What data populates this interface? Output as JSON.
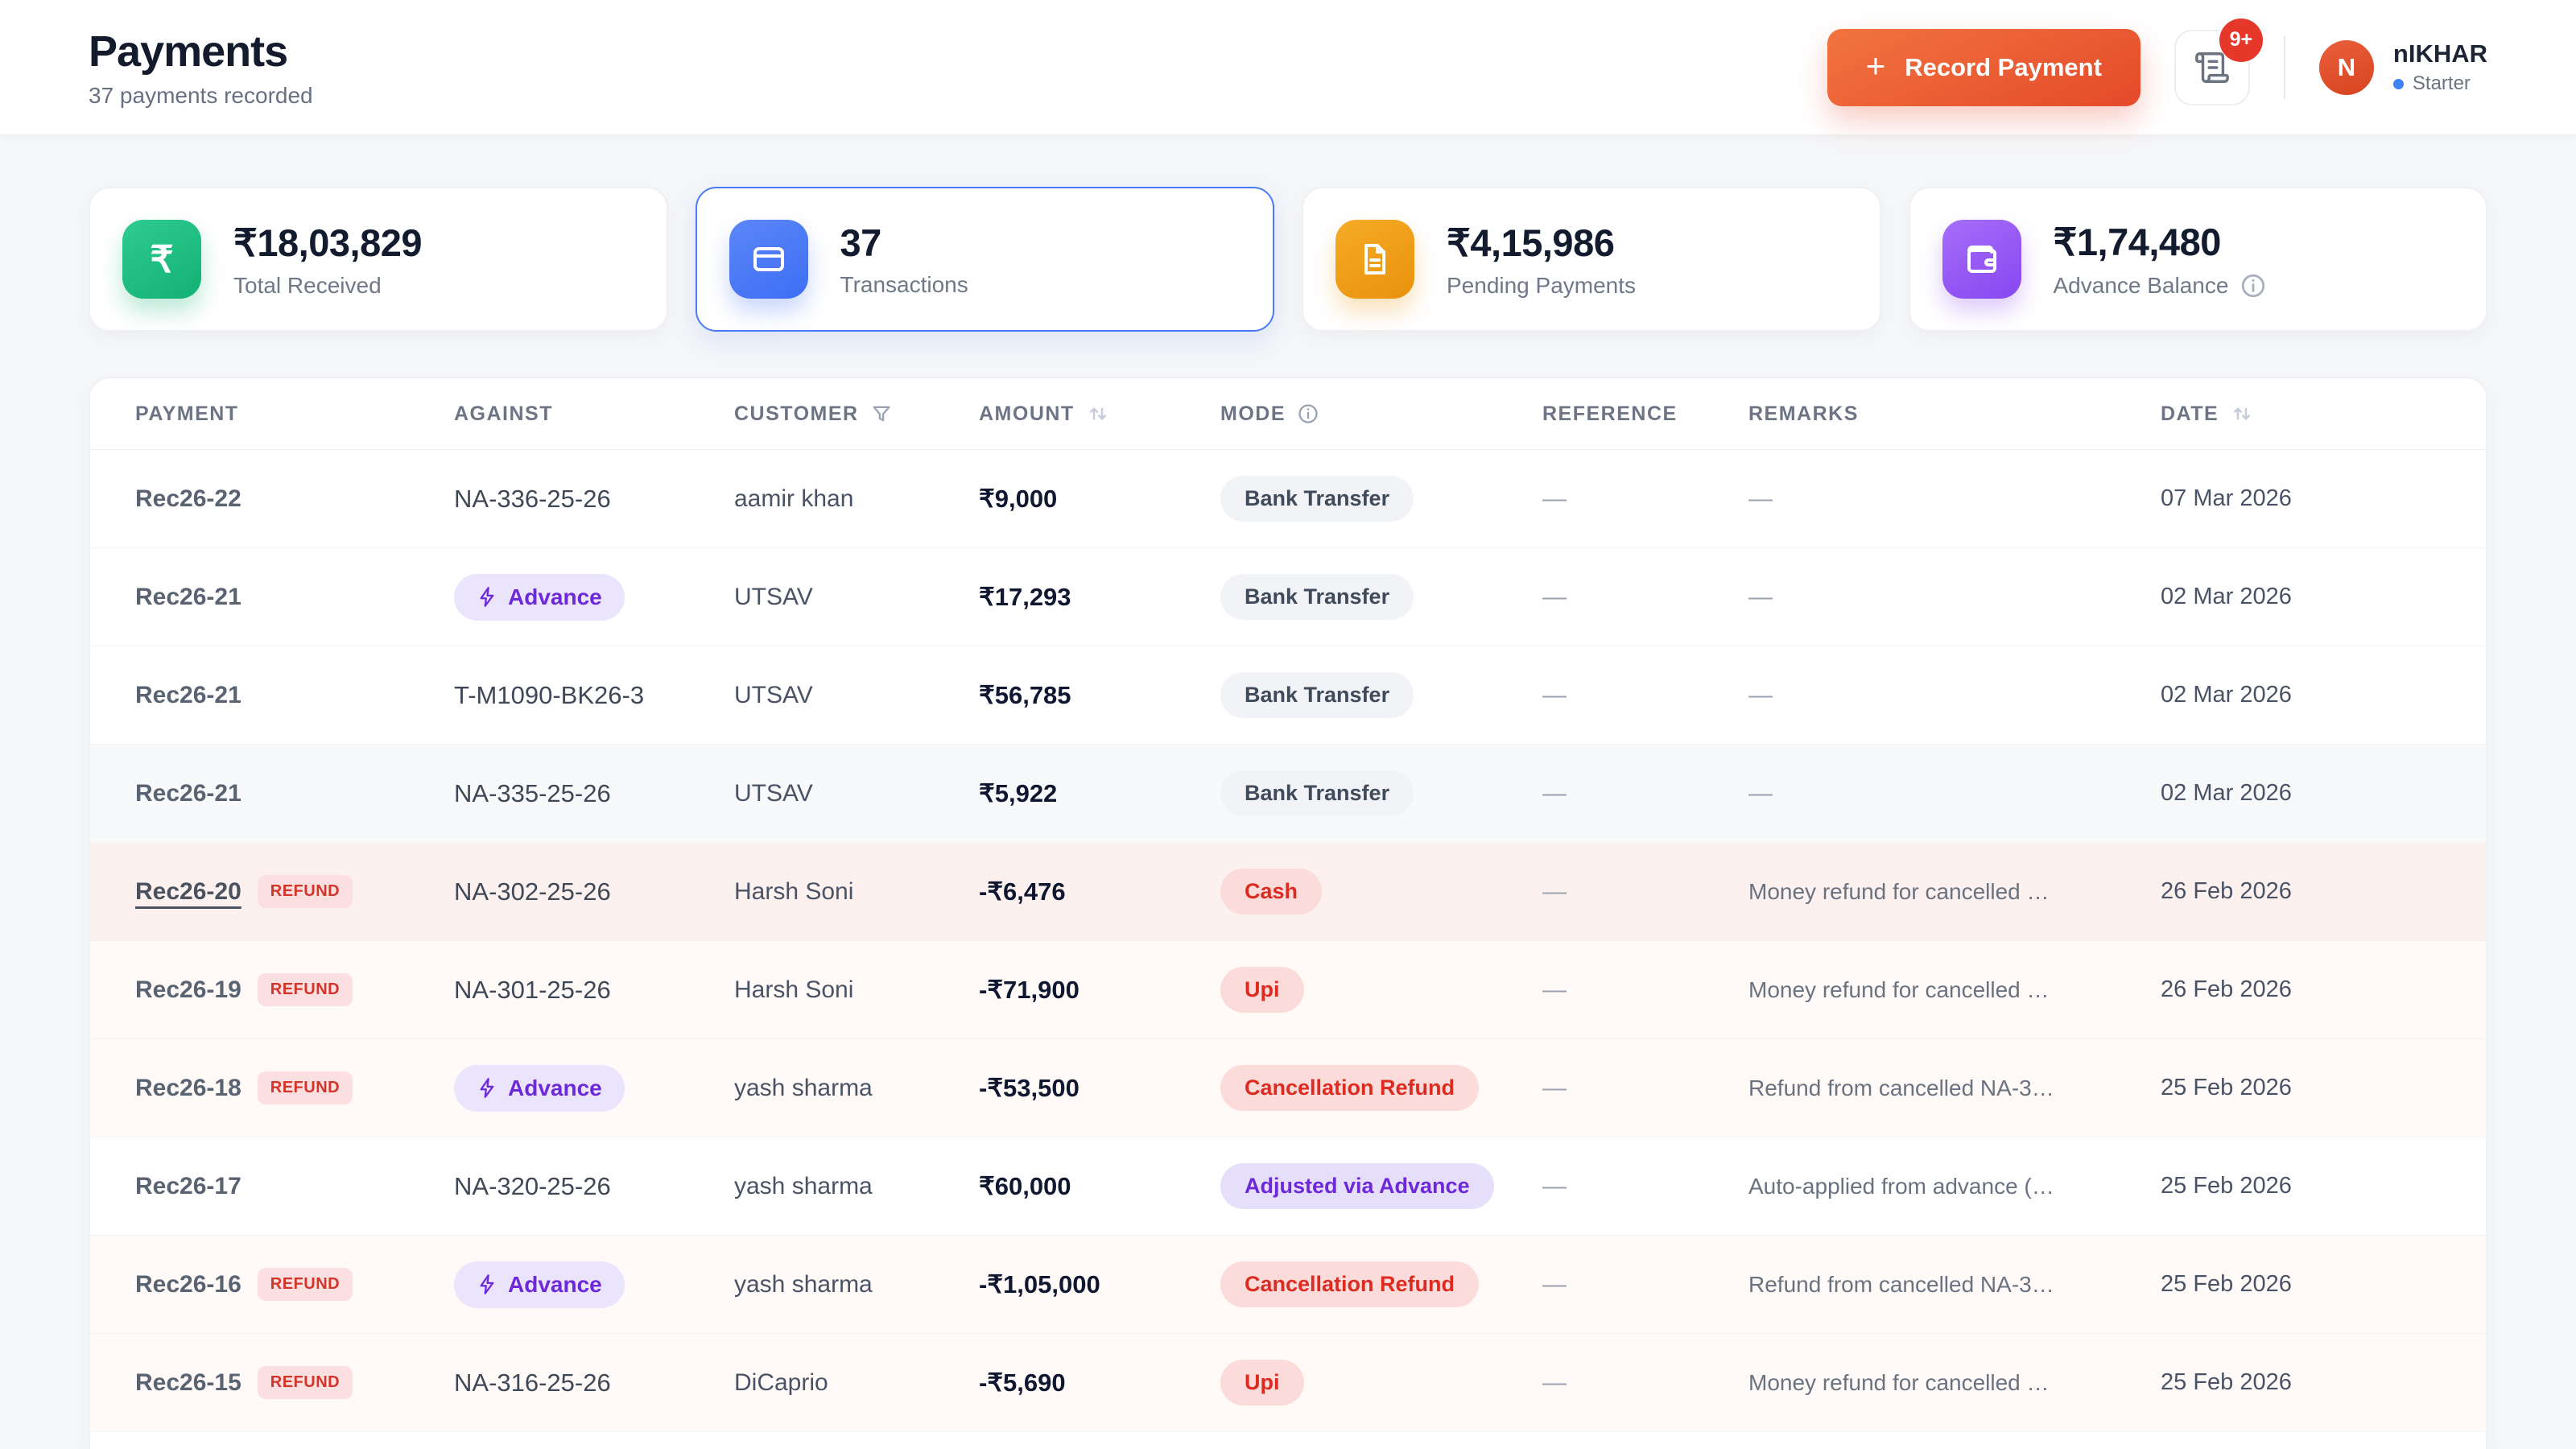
{
  "header": {
    "title": "Payments",
    "subtitle": "37 payments recorded",
    "record_button": {
      "label": "Record Payment"
    },
    "notification": {
      "badge": "9+"
    },
    "user": {
      "initial": "N",
      "name": "nIKHAR",
      "plan": "Starter"
    }
  },
  "colors": {
    "accent_orange": "#e8502e",
    "selected_blue": "#4a7bf7",
    "green": "#14b377",
    "amber": "#eb990f",
    "purple": "#8b52f3",
    "refund_red": "#dc2f26",
    "page_bg": "#f5f6f8"
  },
  "stats": [
    {
      "value": "₹18,03,829",
      "label": "Total Received",
      "icon": "rupee",
      "tile": "green",
      "selected": false,
      "info": false
    },
    {
      "value": "37",
      "label": "Transactions",
      "icon": "card",
      "tile": "blue",
      "selected": true,
      "info": false
    },
    {
      "value": "₹4,15,986",
      "label": "Pending Payments",
      "icon": "document",
      "tile": "amber",
      "selected": false,
      "info": false
    },
    {
      "value": "₹1,74,480",
      "label": "Advance Balance",
      "icon": "wallet",
      "tile": "purple",
      "selected": false,
      "info": true
    }
  ],
  "table": {
    "refund_badge_label": "REFUND",
    "advance_label": "Advance",
    "columns": [
      {
        "label": "PAYMENT",
        "icon": null
      },
      {
        "label": "AGAINST",
        "icon": null
      },
      {
        "label": "CUSTOMER",
        "icon": "filter"
      },
      {
        "label": "AMOUNT",
        "icon": "sort"
      },
      {
        "label": "MODE",
        "icon": "info"
      },
      {
        "label": "REFERENCE",
        "icon": null
      },
      {
        "label": "REMARKS",
        "icon": null
      },
      {
        "label": "DATE",
        "icon": "sort"
      }
    ],
    "rows": [
      {
        "payment": "Rec26-22",
        "refund": false,
        "underline": false,
        "against": {
          "type": "text",
          "label": "NA-336-25-26"
        },
        "customer": "aamir khan",
        "amount": "₹9,000",
        "mode": {
          "label": "Bank Transfer",
          "variant": "neutral"
        },
        "reference": "—",
        "remarks": "—",
        "date": "07 Mar 2026",
        "highlight": "none"
      },
      {
        "payment": "Rec26-21",
        "refund": false,
        "underline": false,
        "against": {
          "type": "advance"
        },
        "customer": "UTSAV",
        "amount": "₹17,293",
        "mode": {
          "label": "Bank Transfer",
          "variant": "neutral"
        },
        "reference": "—",
        "remarks": "—",
        "date": "02 Mar 2026",
        "highlight": "none"
      },
      {
        "payment": "Rec26-21",
        "refund": false,
        "underline": false,
        "against": {
          "type": "text",
          "label": "T-M1090-BK26-3"
        },
        "customer": "UTSAV",
        "amount": "₹56,785",
        "mode": {
          "label": "Bank Transfer",
          "variant": "neutral"
        },
        "reference": "—",
        "remarks": "—",
        "date": "02 Mar 2026",
        "highlight": "none"
      },
      {
        "payment": "Rec26-21",
        "refund": false,
        "underline": false,
        "against": {
          "type": "text",
          "label": "NA-335-25-26"
        },
        "customer": "UTSAV",
        "amount": "₹5,922",
        "mode": {
          "label": "Bank Transfer",
          "variant": "neutral"
        },
        "reference": "—",
        "remarks": "—",
        "date": "02 Mar 2026",
        "highlight": "stripe"
      },
      {
        "payment": "Rec26-20",
        "refund": true,
        "underline": true,
        "against": {
          "type": "text",
          "label": "NA-302-25-26"
        },
        "customer": "Harsh Soni",
        "amount": "-₹6,476",
        "mode": {
          "label": "Cash",
          "variant": "red"
        },
        "reference": "—",
        "remarks": "Money refund for cancelled …",
        "date": "26 Feb 2026",
        "highlight": "active"
      },
      {
        "payment": "Rec26-19",
        "refund": true,
        "underline": false,
        "against": {
          "type": "text",
          "label": "NA-301-25-26"
        },
        "customer": "Harsh Soni",
        "amount": "-₹71,900",
        "mode": {
          "label": "Upi",
          "variant": "red"
        },
        "reference": "—",
        "remarks": "Money refund for cancelled …",
        "date": "26 Feb 2026",
        "highlight": "tint"
      },
      {
        "payment": "Rec26-18",
        "refund": true,
        "underline": false,
        "against": {
          "type": "advance"
        },
        "customer": "yash sharma",
        "amount": "-₹53,500",
        "mode": {
          "label": "Cancellation Refund",
          "variant": "red"
        },
        "reference": "—",
        "remarks": "Refund from cancelled NA-3…",
        "date": "25 Feb 2026",
        "highlight": "tint"
      },
      {
        "payment": "Rec26-17",
        "refund": false,
        "underline": false,
        "against": {
          "type": "text",
          "label": "NA-320-25-26"
        },
        "customer": "yash sharma",
        "amount": "₹60,000",
        "mode": {
          "label": "Adjusted via Advance",
          "variant": "purple"
        },
        "reference": "—",
        "remarks": "Auto-applied from advance (…",
        "date": "25 Feb 2026",
        "highlight": "none"
      },
      {
        "payment": "Rec26-16",
        "refund": true,
        "underline": false,
        "against": {
          "type": "advance"
        },
        "customer": "yash sharma",
        "amount": "-₹1,05,000",
        "mode": {
          "label": "Cancellation Refund",
          "variant": "red"
        },
        "reference": "—",
        "remarks": "Refund from cancelled NA-3…",
        "date": "25 Feb 2026",
        "highlight": "tint"
      },
      {
        "payment": "Rec26-15",
        "refund": true,
        "underline": false,
        "against": {
          "type": "text",
          "label": "NA-316-25-26"
        },
        "customer": "DiCaprio",
        "amount": "-₹5,690",
        "mode": {
          "label": "Upi",
          "variant": "red"
        },
        "reference": "—",
        "remarks": "Money refund for cancelled …",
        "date": "25 Feb 2026",
        "highlight": "tint"
      }
    ]
  }
}
